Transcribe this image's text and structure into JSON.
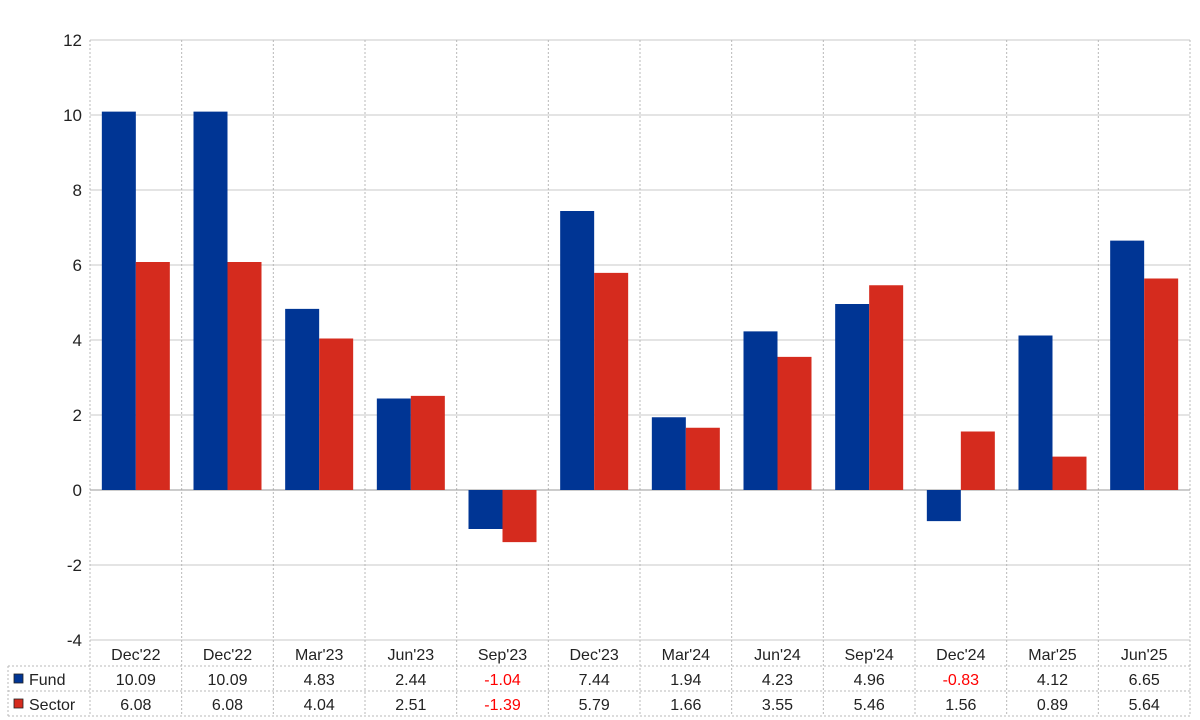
{
  "chart_data": {
    "type": "bar",
    "categories": [
      "Dec'22",
      "Dec'22",
      "Mar'23",
      "Jun'23",
      "Sep'23",
      "Dec'23",
      "Mar'24",
      "Jun'24",
      "Sep'24",
      "Dec'24",
      "Mar'25",
      "Jun'25"
    ],
    "series": [
      {
        "name": "Fund",
        "color": "#003594",
        "values": [
          10.09,
          10.09,
          4.83,
          2.44,
          -1.04,
          7.44,
          1.94,
          4.23,
          4.96,
          -0.83,
          4.12,
          6.65
        ],
        "labels": [
          "10.09",
          "10.09",
          "4.83",
          "2.44",
          "-1.04",
          "7.44",
          "1.94",
          "4.23",
          "4.96",
          "-0.83",
          "4.12",
          "6.65"
        ]
      },
      {
        "name": "Sector",
        "color": "#d52b1e",
        "values": [
          6.08,
          6.08,
          4.04,
          2.51,
          -1.39,
          5.79,
          1.66,
          3.55,
          5.46,
          1.56,
          0.89,
          5.64
        ],
        "labels": [
          "6.08",
          "6.08",
          "4.04",
          "2.51",
          "-1.39",
          "5.79",
          "1.66",
          "3.55",
          "5.46",
          "1.56",
          "0.89",
          "5.64"
        ]
      }
    ],
    "ylim": [
      -4,
      12
    ],
    "yticks": [
      -4,
      -2,
      0,
      2,
      4,
      6,
      8,
      10,
      12
    ],
    "grid": true,
    "negative_label_color": "#ff0000",
    "legend": "data-table-left"
  }
}
